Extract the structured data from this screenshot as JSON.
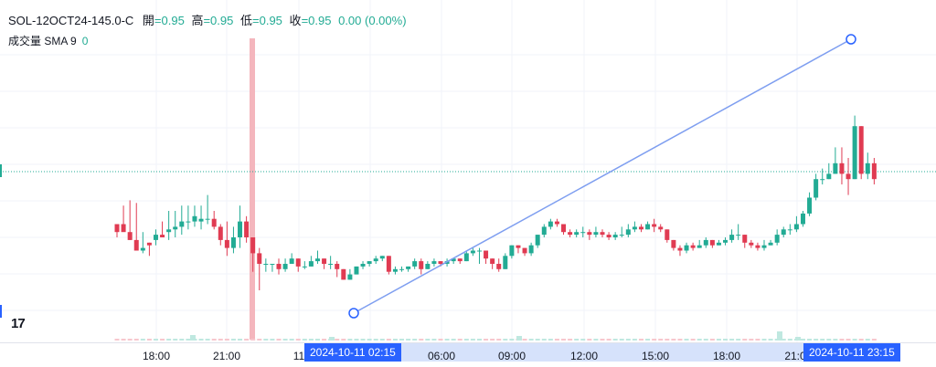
{
  "legend": {
    "symbol": "SOL-12OCT24-145.0-C",
    "open_label": "開",
    "open": "=0.95",
    "high_label": "高",
    "high": "=0.95",
    "low_label": "低",
    "low": "=0.95",
    "close_label": "收",
    "close": "=0.95",
    "change": "0.00 (0.00%)"
  },
  "volume_legend": {
    "label": "成交量 SMA 9",
    "value": "0"
  },
  "logo": "17",
  "time_axis": {
    "ticks": [
      "18:00",
      "21:00",
      "11",
      "06:00",
      "09:00",
      "12:00",
      "15:00",
      "18:00",
      "21:0"
    ],
    "label_start": "2024-10-11   02:15",
    "label_end": "2024-10-11   23:15"
  },
  "colors": {
    "up": "#22ab94",
    "down": "#e03b52",
    "line": "#7e9ef0",
    "vline": "#f4b6bd",
    "accent": "#2962ff"
  },
  "chart_data": {
    "type": "candlestick",
    "series": [
      {
        "name": "SOL-12OCT24-145.0-C",
        "values": [
          [
            5,
            2,
            0,
            5
          ],
          [
            5,
            2,
            12,
            3
          ],
          [
            2,
            -1,
            14,
            -1
          ],
          [
            -1,
            -5,
            13,
            -3
          ],
          [
            -5,
            -4,
            2,
            -6
          ],
          [
            -2,
            -3,
            -2,
            -7
          ],
          [
            -1,
            1,
            3,
            -3
          ],
          [
            1,
            0,
            6,
            0
          ],
          [
            2,
            3,
            10,
            -1
          ],
          [
            3,
            4,
            10,
            0
          ],
          [
            4,
            6,
            12,
            1
          ],
          [
            6,
            6,
            12,
            3
          ],
          [
            6,
            8,
            12,
            4
          ],
          [
            6,
            7,
            12,
            3
          ],
          [
            7,
            7,
            16,
            5
          ],
          [
            7,
            4,
            10,
            3
          ],
          [
            4,
            -1,
            5,
            -3
          ],
          [
            -1,
            -4,
            6,
            -7
          ],
          [
            -4,
            0,
            4,
            -6
          ],
          [
            0,
            6,
            12,
            -4
          ],
          [
            6,
            0,
            8,
            -2
          ],
          [
            0,
            -6,
            0,
            -13
          ],
          [
            -6,
            -10,
            -4,
            -20
          ],
          [
            -10,
            -10,
            -8,
            -13
          ],
          [
            -10,
            -10,
            -10,
            -13
          ],
          [
            -10,
            -12,
            -8,
            -14
          ],
          [
            -12,
            -10,
            -8,
            -13
          ],
          [
            -10,
            -8,
            -6,
            -10
          ],
          [
            -8,
            -11,
            -8,
            -13
          ],
          [
            -11,
            -11,
            -9,
            -12
          ],
          [
            -11,
            -9,
            -7,
            -11
          ],
          [
            -9,
            -8,
            -5,
            -10
          ],
          [
            -8,
            -10,
            -8,
            -12
          ],
          [
            -10,
            -10,
            -7,
            -12
          ],
          [
            -10,
            -12,
            -9,
            -15
          ],
          [
            -12,
            -16,
            -12,
            -16
          ],
          [
            -16,
            -14,
            -12,
            -16
          ],
          [
            -14,
            -11,
            -11,
            -14
          ],
          [
            -11,
            -10,
            -9,
            -12
          ],
          [
            -10,
            -9,
            -9,
            -11
          ],
          [
            -9,
            -8,
            -7,
            -10
          ],
          [
            -8,
            -7,
            -7,
            -9
          ],
          [
            -7,
            -13,
            -7,
            -14
          ],
          [
            -13,
            -12,
            -11,
            -14
          ],
          [
            -12,
            -12,
            -11,
            -13
          ],
          [
            -12,
            -11,
            -11,
            -13
          ],
          [
            -11,
            -9,
            -8,
            -12
          ],
          [
            -9,
            -12,
            -8,
            -14
          ],
          [
            -12,
            -10,
            -9,
            -12
          ],
          [
            -10,
            -9,
            -8,
            -11
          ],
          [
            -9,
            -10,
            -9,
            -11
          ],
          [
            -10,
            -9,
            -8,
            -11
          ],
          [
            -9,
            -8,
            -8,
            -10
          ],
          [
            -8,
            -9,
            -8,
            -10
          ],
          [
            -9,
            -6,
            -5,
            -9
          ],
          [
            -6,
            -5,
            -4,
            -7
          ],
          [
            -5,
            -5,
            -4,
            -10
          ],
          [
            -5,
            -8,
            -5,
            -10
          ],
          [
            -8,
            -10,
            -8,
            -12
          ],
          [
            -10,
            -12,
            -8,
            -13
          ],
          [
            -12,
            -7,
            -6,
            -12
          ],
          [
            -7,
            -3,
            -3,
            -8
          ],
          [
            -3,
            -4,
            -3,
            -6
          ],
          [
            -4,
            -6,
            -4,
            -7
          ],
          [
            -6,
            -3,
            -2,
            -7
          ],
          [
            -3,
            1,
            1,
            -4
          ],
          [
            1,
            4,
            5,
            0
          ],
          [
            4,
            6,
            7,
            3
          ],
          [
            6,
            5,
            7,
            4
          ],
          [
            5,
            2,
            5,
            1
          ],
          [
            2,
            1,
            3,
            0
          ],
          [
            1,
            2,
            3,
            0
          ],
          [
            2,
            2,
            4,
            0
          ],
          [
            2,
            1,
            3,
            -1
          ],
          [
            1,
            2,
            4,
            0
          ],
          [
            2,
            1,
            3,
            0
          ],
          [
            1,
            0,
            2,
            -1
          ],
          [
            0,
            1,
            2,
            -1
          ],
          [
            1,
            1,
            4,
            0
          ],
          [
            1,
            3,
            5,
            0
          ],
          [
            3,
            4,
            6,
            2
          ],
          [
            4,
            3,
            5,
            2
          ],
          [
            3,
            5,
            6,
            3
          ],
          [
            5,
            4,
            7,
            2
          ],
          [
            4,
            3,
            5,
            2
          ],
          [
            3,
            -1,
            3,
            -2
          ],
          [
            -1,
            -4,
            -1,
            -5
          ],
          [
            -4,
            -5,
            -3,
            -7
          ],
          [
            -5,
            -3,
            -2,
            -6
          ],
          [
            -3,
            -4,
            -2,
            -5
          ],
          [
            -4,
            -3,
            -1,
            -4
          ],
          [
            -3,
            -1,
            0,
            -4
          ],
          [
            -1,
            -3,
            -1,
            -4
          ],
          [
            -3,
            -2,
            -1,
            -3
          ],
          [
            -2,
            -1,
            0,
            -3
          ],
          [
            -1,
            1,
            3,
            -2
          ],
          [
            1,
            1,
            5,
            -1
          ],
          [
            1,
            -2,
            1,
            -4
          ],
          [
            -2,
            -3,
            -1,
            -4
          ],
          [
            -3,
            -4,
            -2,
            -5
          ],
          [
            -4,
            -3,
            -1,
            -5
          ],
          [
            -3,
            -2,
            -1,
            -3
          ],
          [
            -2,
            1,
            3,
            -3
          ],
          [
            1,
            3,
            4,
            0
          ],
          [
            3,
            3,
            5,
            1
          ],
          [
            3,
            5,
            8,
            2
          ],
          [
            5,
            9,
            10,
            4
          ],
          [
            9,
            15,
            17,
            8
          ],
          [
            15,
            22,
            24,
            14
          ],
          [
            22,
            22,
            26,
            20
          ],
          [
            22,
            24,
            28,
            22
          ],
          [
            24,
            28,
            34,
            24
          ],
          [
            28,
            24,
            34,
            20
          ],
          [
            24,
            22,
            30,
            16
          ],
          [
            22,
            42,
            46,
            22
          ],
          [
            42,
            24,
            42,
            22
          ],
          [
            24,
            28,
            32,
            22
          ],
          [
            28,
            22,
            30,
            20
          ]
        ]
      }
    ],
    "volume": [
      0,
      0,
      0,
      0,
      0,
      0,
      0,
      0,
      0,
      0,
      0,
      0,
      0,
      0,
      0,
      0,
      0,
      0,
      0,
      0,
      0,
      0,
      0,
      0,
      0,
      0,
      0,
      0,
      0,
      0,
      0,
      0,
      0,
      0,
      0,
      0,
      0,
      0,
      0,
      0,
      0,
      0,
      0,
      0,
      0,
      0,
      0,
      0,
      0,
      0,
      0,
      0,
      0,
      0,
      0,
      0,
      0,
      0,
      0,
      0,
      0,
      0,
      0,
      0,
      0,
      0,
      0,
      0,
      0,
      0,
      0,
      0,
      0,
      0,
      0,
      0,
      0,
      0,
      0,
      0,
      0,
      0,
      0,
      0,
      0,
      0,
      0,
      0,
      0,
      0,
      0,
      0,
      0,
      0,
      0,
      0,
      0,
      0,
      0,
      0,
      0,
      0,
      0,
      0,
      0,
      0,
      0,
      0,
      0,
      0,
      0,
      0,
      0,
      0,
      0,
      0,
      0,
      0
    ]
  }
}
